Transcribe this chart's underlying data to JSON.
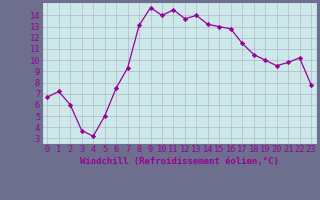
{
  "x": [
    0,
    1,
    2,
    3,
    4,
    5,
    6,
    7,
    8,
    9,
    10,
    11,
    12,
    13,
    14,
    15,
    16,
    17,
    18,
    19,
    20,
    21,
    22,
    23
  ],
  "y": [
    6.7,
    7.2,
    6.0,
    3.7,
    3.2,
    5.0,
    7.5,
    9.3,
    13.1,
    14.7,
    14.0,
    14.5,
    13.7,
    14.0,
    13.2,
    13.0,
    12.8,
    11.5,
    10.5,
    10.0,
    9.5,
    9.8,
    10.2,
    7.8
  ],
  "line_color": "#990099",
  "marker": "D",
  "markersize": 2.2,
  "linewidth": 0.9,
  "grid_color": "#b0b8cc",
  "xlabel": "Windchill (Refroidissement éolien,°C)",
  "xlabel_color": "#990099",
  "xlabel_fontsize": 6.5,
  "ylabel_ticks": [
    3,
    4,
    5,
    6,
    7,
    8,
    9,
    10,
    11,
    12,
    13,
    14
  ],
  "xlim": [
    -0.5,
    23.5
  ],
  "ylim": [
    2.5,
    15.2
  ],
  "tick_fontsize": 6.2,
  "tick_color": "#990099",
  "axis_bg": "#cce8e8",
  "figure_bg": "#6e6e8e"
}
